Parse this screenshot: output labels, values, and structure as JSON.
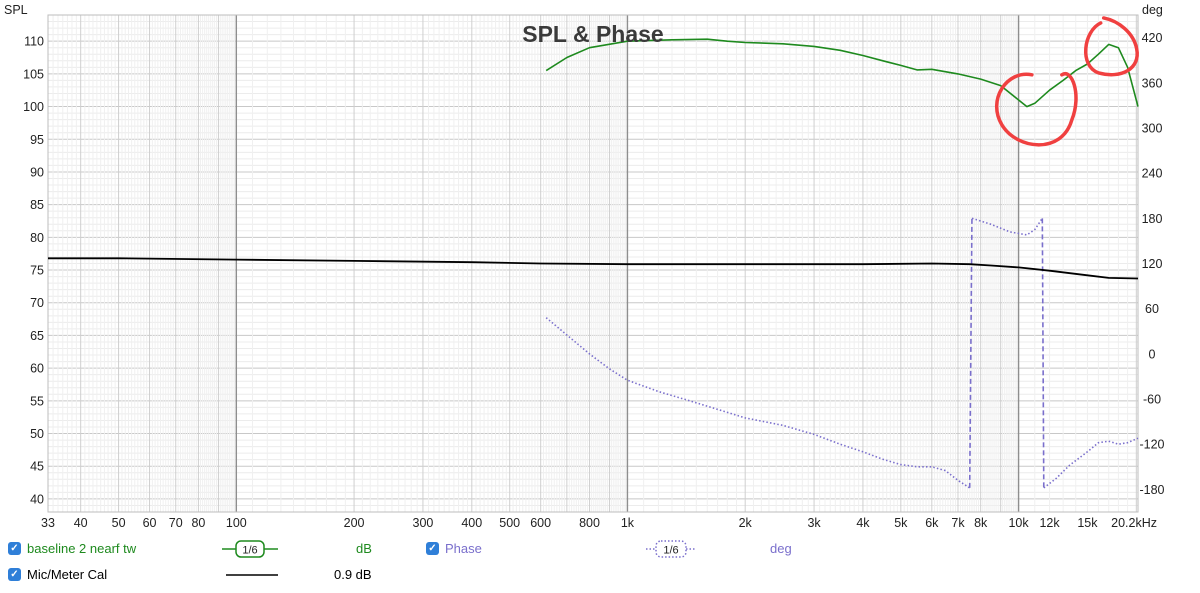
{
  "chart_data": {
    "type": "line",
    "title": "SPL & Phase",
    "ylabel_left": "SPL",
    "ylabel_right": "deg",
    "x_scale": "log",
    "xlim": [
      33,
      20200
    ],
    "ylim_left": [
      38,
      114
    ],
    "ylim_right": [
      -210,
      450
    ],
    "x_ticks": [
      {
        "v": 33,
        "label": "33"
      },
      {
        "v": 40,
        "label": "40"
      },
      {
        "v": 50,
        "label": "50"
      },
      {
        "v": 60,
        "label": "60"
      },
      {
        "v": 70,
        "label": "70"
      },
      {
        "v": 80,
        "label": "80"
      },
      {
        "v": 100,
        "label": "100"
      },
      {
        "v": 200,
        "label": "200"
      },
      {
        "v": 300,
        "label": "300"
      },
      {
        "v": 400,
        "label": "400"
      },
      {
        "v": 500,
        "label": "500"
      },
      {
        "v": 600,
        "label": "600"
      },
      {
        "v": 800,
        "label": "800"
      },
      {
        "v": 1000,
        "label": "1k"
      },
      {
        "v": 2000,
        "label": "2k"
      },
      {
        "v": 3000,
        "label": "3k"
      },
      {
        "v": 4000,
        "label": "4k"
      },
      {
        "v": 5000,
        "label": "5k"
      },
      {
        "v": 6000,
        "label": "6k"
      },
      {
        "v": 7000,
        "label": "7k"
      },
      {
        "v": 8000,
        "label": "8k"
      },
      {
        "v": 10000,
        "label": "10k"
      },
      {
        "v": 12000,
        "label": "12k"
      },
      {
        "v": 15000,
        "label": "15k"
      },
      {
        "v": 20200,
        "label": "20.2kHz"
      }
    ],
    "y_ticks_left": [
      40,
      45,
      50,
      55,
      60,
      65,
      70,
      75,
      80,
      85,
      90,
      95,
      100,
      105,
      110
    ],
    "y_ticks_right": [
      -180,
      -120,
      -60,
      0,
      60,
      120,
      180,
      240,
      300,
      360,
      420
    ],
    "grid": true,
    "series": [
      {
        "name": "baseline 2 nearf tw",
        "unit": "dB",
        "axis": "left",
        "color": "#1e8a1e",
        "style": "solid",
        "points": [
          [
            620,
            105.5
          ],
          [
            700,
            107.5
          ],
          [
            800,
            109
          ],
          [
            1000,
            110
          ],
          [
            1300,
            110.2
          ],
          [
            1600,
            110.3
          ],
          [
            1800,
            110
          ],
          [
            2000,
            109.8
          ],
          [
            2500,
            109.6
          ],
          [
            3000,
            109.2
          ],
          [
            3500,
            108.6
          ],
          [
            4000,
            107.8
          ],
          [
            4500,
            107
          ],
          [
            5000,
            106.3
          ],
          [
            5500,
            105.6
          ],
          [
            6000,
            105.7
          ],
          [
            7000,
            105
          ],
          [
            8000,
            104.2
          ],
          [
            9000,
            103.2
          ],
          [
            10000,
            101
          ],
          [
            10500,
            100
          ],
          [
            11000,
            100.5
          ],
          [
            12000,
            102.5
          ],
          [
            13000,
            104
          ],
          [
            14000,
            105.5
          ],
          [
            15000,
            106.5
          ],
          [
            16000,
            108
          ],
          [
            17000,
            109.5
          ],
          [
            18000,
            109
          ],
          [
            19000,
            106
          ],
          [
            20200,
            100
          ]
        ]
      },
      {
        "name": "Phase",
        "unit": "deg",
        "axis": "right",
        "color": "#7a6fcc",
        "style": "dotted",
        "points": [
          [
            620,
            48
          ],
          [
            700,
            25
          ],
          [
            800,
            0
          ],
          [
            900,
            -20
          ],
          [
            1000,
            -35
          ],
          [
            1200,
            -50
          ],
          [
            1500,
            -65
          ],
          [
            2000,
            -85
          ],
          [
            2500,
            -95
          ],
          [
            3000,
            -107
          ],
          [
            3500,
            -120
          ],
          [
            4000,
            -130
          ],
          [
            4500,
            -140
          ],
          [
            5000,
            -147
          ],
          [
            5500,
            -150
          ],
          [
            6000,
            -150
          ],
          [
            6500,
            -155
          ],
          [
            7000,
            -168
          ],
          [
            7500,
            -178
          ],
          [
            7600,
            180
          ],
          [
            8500,
            172
          ],
          [
            9500,
            162
          ],
          [
            10500,
            158
          ],
          [
            11000,
            165
          ],
          [
            11500,
            180
          ],
          [
            11600,
            -178
          ],
          [
            12500,
            -165
          ],
          [
            13500,
            -148
          ],
          [
            15000,
            -130
          ],
          [
            16000,
            -118
          ],
          [
            17000,
            -116
          ],
          [
            18000,
            -120
          ],
          [
            19000,
            -118
          ],
          [
            20200,
            -112
          ]
        ]
      },
      {
        "name": "Mic/Meter Cal",
        "unit": "0.9 dB",
        "axis": "left",
        "color": "#000000",
        "style": "solid",
        "points": [
          [
            33,
            76.8
          ],
          [
            50,
            76.8
          ],
          [
            100,
            76.6
          ],
          [
            200,
            76.4
          ],
          [
            400,
            76.2
          ],
          [
            600,
            76
          ],
          [
            1000,
            75.9
          ],
          [
            2000,
            75.9
          ],
          [
            4000,
            75.9
          ],
          [
            6000,
            76
          ],
          [
            7500,
            75.9
          ],
          [
            8500,
            75.7
          ],
          [
            10000,
            75.4
          ],
          [
            12000,
            74.9
          ],
          [
            15000,
            74.2
          ],
          [
            17000,
            73.8
          ],
          [
            20200,
            73.7
          ]
        ]
      }
    ],
    "annotations": "red hand-drawn circles around the dip near 10.5k and the peak near 17k on the green curve"
  },
  "legend": {
    "row1": {
      "series_label": "baseline 2 nearf tw",
      "smoothing": "1/6",
      "unit": "dB",
      "phase_label": "Phase",
      "phase_smoothing": "1/6",
      "phase_unit": "deg"
    },
    "row2": {
      "series_label": "Mic/Meter Cal",
      "unit": "0.9 dB"
    }
  },
  "colors": {
    "spl": "#1e8a1e",
    "phase": "#7a6fcc",
    "cal": "#000000",
    "annotation": "#f04040",
    "checkbox": "#2f7fd8"
  }
}
